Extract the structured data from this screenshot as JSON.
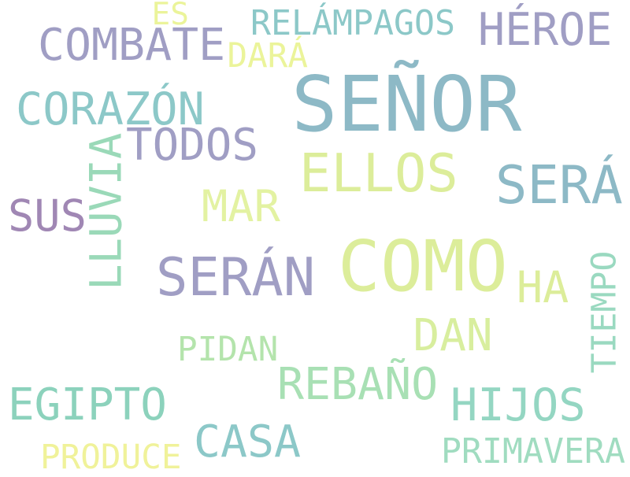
{
  "words": [
    {
      "id": "senor",
      "text": "SEÑOR",
      "color": "#8db9c6"
    },
    {
      "id": "como",
      "text": "COMO",
      "color": "#dced9a"
    },
    {
      "id": "combate",
      "text": "COMBATE",
      "color": "#a09ec4"
    },
    {
      "id": "heroe",
      "text": "HÉROE",
      "color": "#a09ec4"
    },
    {
      "id": "corazon",
      "text": "CORAZÓN",
      "color": "#8cc8c8"
    },
    {
      "id": "todos",
      "text": "TODOS",
      "color": "#a09ec4"
    },
    {
      "id": "ellos",
      "text": "ELLOS",
      "color": "#dced9a"
    },
    {
      "id": "sera",
      "text": "SERÁ",
      "color": "#8db9c6"
    },
    {
      "id": "seran",
      "text": "SERÁN",
      "color": "#a09ec4"
    },
    {
      "id": "sus",
      "text": "SUS",
      "color": "#a087b4"
    },
    {
      "id": "lluvia",
      "text": "LLUVIA",
      "color": "#9ad9b8"
    },
    {
      "id": "mar",
      "text": "MAR",
      "color": "#e3f2a2"
    },
    {
      "id": "relampagos",
      "text": "RELÁMPAGOS",
      "color": "#8cc8c8"
    },
    {
      "id": "es",
      "text": "ES",
      "color": "#ebf49a"
    },
    {
      "id": "dara",
      "text": "DARÁ",
      "color": "#ebf49a"
    },
    {
      "id": "ha",
      "text": "HA",
      "color": "#dced9a"
    },
    {
      "id": "tiempo",
      "text": "TIEMPO",
      "color": "#9ad9c0"
    },
    {
      "id": "dan",
      "text": "DAN",
      "color": "#d8ee9e"
    },
    {
      "id": "pidan",
      "text": "PIDAN",
      "color": "#b4e4ac"
    },
    {
      "id": "rebano",
      "text": "REBAÑO",
      "color": "#a8e0b4"
    },
    {
      "id": "egipto",
      "text": "EGIPTO",
      "color": "#8cd2bc"
    },
    {
      "id": "hijos",
      "text": "HIJOS",
      "color": "#94d6c2"
    },
    {
      "id": "casa",
      "text": "CASA",
      "color": "#8cc8c8"
    },
    {
      "id": "produce",
      "text": "PRODUCE",
      "color": "#f0f29a"
    },
    {
      "id": "primavera",
      "text": "PRIMAVERA",
      "color": "#a0dcc0"
    }
  ]
}
